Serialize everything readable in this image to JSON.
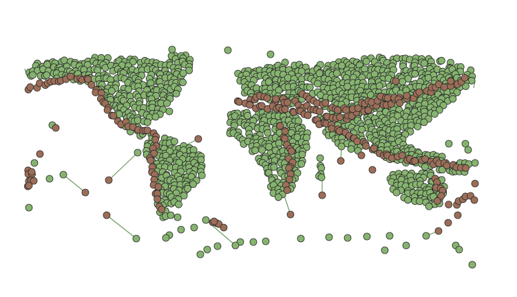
{
  "map": {
    "background": "#ffffff",
    "node_fill_green": "#86b46f",
    "node_fill_brown": "#9c6e58",
    "node_stroke": "#2b2b2b",
    "edge_color": "#6e9a5e"
  }
}
